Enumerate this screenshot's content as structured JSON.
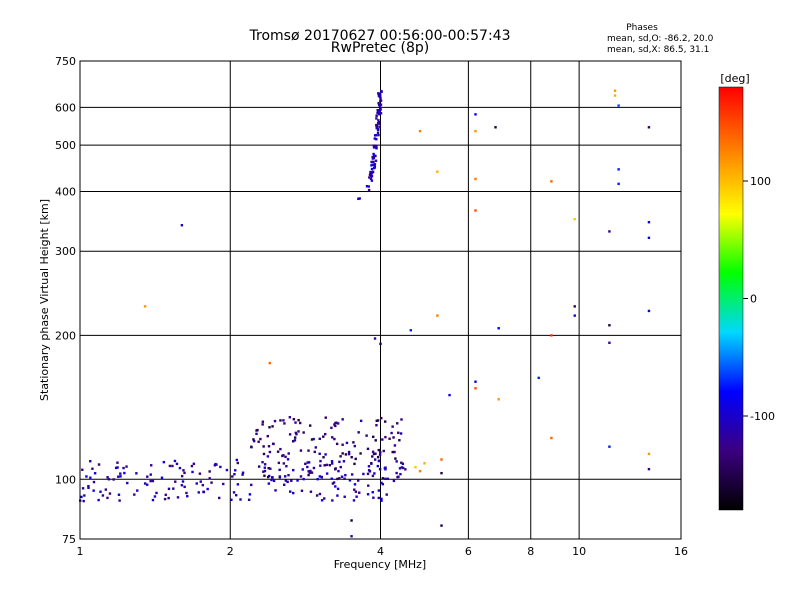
{
  "header": {
    "title_line1": "Tromsø 20170627 00:56:00-00:57:43",
    "title_line2": "RwPretec (8p)"
  },
  "stats": {
    "heading": "Phases",
    "line_o": "mean, sd,O: -86.2, 20.0",
    "line_x": "mean, sd,X:  86.5, 31.1"
  },
  "chart_data": {
    "type": "scatter",
    "title": "Tromsø 20170627 00:56:00-00:57:43",
    "subtitle": "RwPretec (8p)",
    "xlabel": "Frequency [MHz]",
    "ylabel": "Stationary phase Virtual Height [km]",
    "x_scale": "log",
    "y_scale": "log",
    "xlim": [
      1,
      16
    ],
    "ylim": [
      75,
      750
    ],
    "x_major_ticks": [
      1,
      2,
      4,
      8,
      16
    ],
    "x_major_tick_labels": [
      "1",
      "2",
      "4",
      "8",
      "16"
    ],
    "x_minor_ticks": [
      6,
      10
    ],
    "x_minor_tick_labels": [
      "6",
      "10"
    ],
    "y_ticks": [
      75,
      100,
      200,
      300,
      400,
      500,
      600,
      750
    ],
    "y_tick_labels": [
      "75",
      "100",
      "200",
      "300",
      "400",
      "500",
      "600",
      "750"
    ],
    "grid": true,
    "colorbar": {
      "label": "[deg]",
      "range": [
        -180,
        180
      ],
      "ticks": [
        100,
        0,
        -100
      ],
      "tick_labels": [
        "100",
        "0",
        "-100"
      ],
      "colors": [
        "#000000",
        "#3b0080",
        "#0000ff",
        "#00d8ff",
        "#00ff00",
        "#ffff00",
        "#ff8000",
        "#ff0000"
      ]
    },
    "clusters": [
      {
        "name": "F-trace",
        "x_range": [
          3.5,
          4.0
        ],
        "y_range": [
          385,
          650
        ],
        "phase": -110,
        "count": 90
      },
      {
        "name": "E-trace low",
        "x_range": [
          1.0,
          4.5
        ],
        "y_range": [
          90,
          110
        ],
        "phase": -110,
        "count": 200
      },
      {
        "name": "E-trace upper",
        "x_range": [
          2.2,
          4.5
        ],
        "y_range": [
          100,
          135
        ],
        "phase": -130,
        "count": 160
      }
    ],
    "points": [
      {
        "x": 1.6,
        "y": 340,
        "phase": -110
      },
      {
        "x": 1.35,
        "y": 230,
        "phase": 120
      },
      {
        "x": 2.4,
        "y": 175,
        "phase": 140
      },
      {
        "x": 4.8,
        "y": 535,
        "phase": 130
      },
      {
        "x": 5.2,
        "y": 440,
        "phase": 110
      },
      {
        "x": 6.2,
        "y": 580,
        "phase": -80
      },
      {
        "x": 6.2,
        "y": 535,
        "phase": 120
      },
      {
        "x": 6.8,
        "y": 545,
        "phase": -150
      },
      {
        "x": 6.2,
        "y": 425,
        "phase": 130
      },
      {
        "x": 6.2,
        "y": 365,
        "phase": 150
      },
      {
        "x": 8.8,
        "y": 420,
        "phase": 140
      },
      {
        "x": 9.8,
        "y": 350,
        "phase": 100
      },
      {
        "x": 11.5,
        "y": 330,
        "phase": -120
      },
      {
        "x": 12.0,
        "y": 445,
        "phase": -70
      },
      {
        "x": 12.0,
        "y": 415,
        "phase": -70
      },
      {
        "x": 12.0,
        "y": 605,
        "phase": -60
      },
      {
        "x": 11.8,
        "y": 650,
        "phase": 120
      },
      {
        "x": 11.8,
        "y": 635,
        "phase": 110
      },
      {
        "x": 13.8,
        "y": 545,
        "phase": -140
      },
      {
        "x": 13.8,
        "y": 345,
        "phase": -90
      },
      {
        "x": 13.8,
        "y": 320,
        "phase": -80
      },
      {
        "x": 9.8,
        "y": 230,
        "phase": -140
      },
      {
        "x": 9.8,
        "y": 220,
        "phase": -90
      },
      {
        "x": 13.8,
        "y": 225,
        "phase": -90
      },
      {
        "x": 11.5,
        "y": 210,
        "phase": -155
      },
      {
        "x": 8.8,
        "y": 200,
        "phase": 160
      },
      {
        "x": 11.5,
        "y": 193,
        "phase": -120
      },
      {
        "x": 4.6,
        "y": 205,
        "phase": -70
      },
      {
        "x": 5.2,
        "y": 220,
        "phase": 130
      },
      {
        "x": 6.9,
        "y": 207,
        "phase": -80
      },
      {
        "x": 3.9,
        "y": 197,
        "phase": -110
      },
      {
        "x": 4.0,
        "y": 192,
        "phase": -150
      },
      {
        "x": 6.2,
        "y": 160,
        "phase": -90
      },
      {
        "x": 6.2,
        "y": 155,
        "phase": 150
      },
      {
        "x": 6.9,
        "y": 147,
        "phase": 120
      },
      {
        "x": 8.3,
        "y": 163,
        "phase": -70
      },
      {
        "x": 5.5,
        "y": 150,
        "phase": -80
      },
      {
        "x": 8.8,
        "y": 122,
        "phase": 140
      },
      {
        "x": 11.5,
        "y": 117,
        "phase": -70
      },
      {
        "x": 13.8,
        "y": 113,
        "phase": 120
      },
      {
        "x": 13.8,
        "y": 105,
        "phase": -120
      },
      {
        "x": 5.3,
        "y": 110,
        "phase": 140
      },
      {
        "x": 5.3,
        "y": 103,
        "phase": -150
      },
      {
        "x": 5.3,
        "y": 80,
        "phase": -150
      },
      {
        "x": 3.5,
        "y": 82,
        "phase": -160
      },
      {
        "x": 3.5,
        "y": 76,
        "phase": -120
      },
      {
        "x": 4.9,
        "y": 108,
        "phase": 110
      },
      {
        "x": 4.8,
        "y": 104,
        "phase": 130
      },
      {
        "x": 4.7,
        "y": 106,
        "phase": 100
      }
    ]
  }
}
